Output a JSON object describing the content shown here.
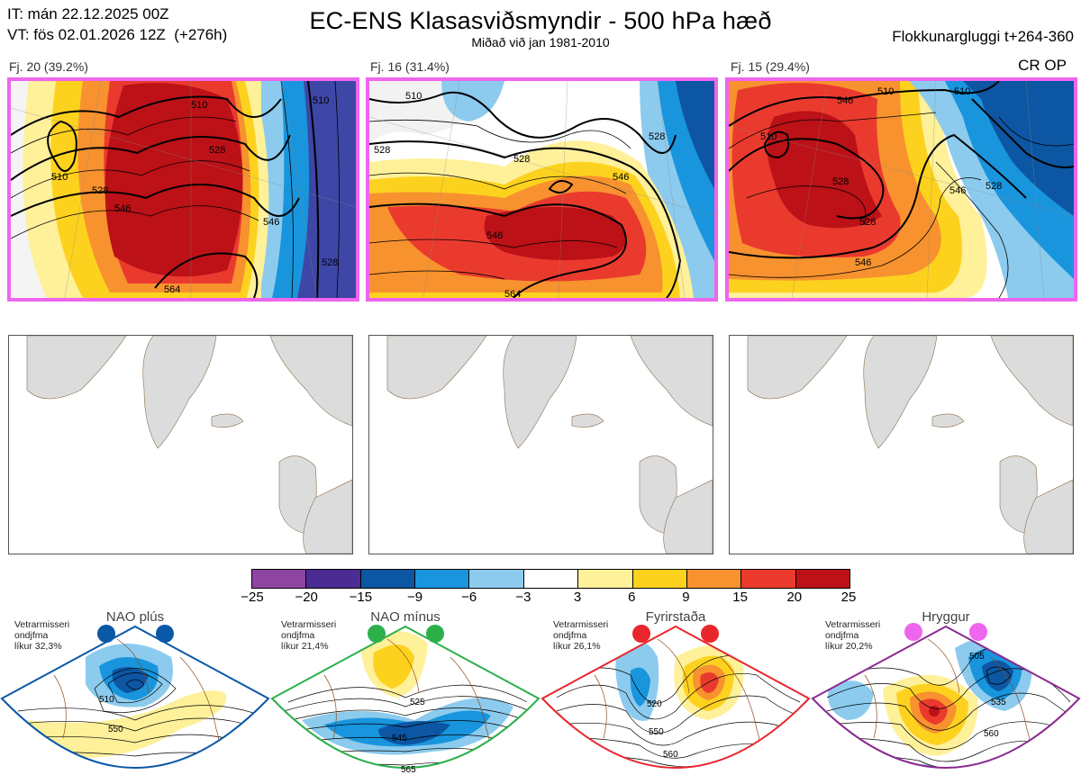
{
  "header": {
    "issue_time": "IT: mán 22.12.2025 00Z",
    "valid_time": "VT: fös 02.01.2026 12Z  (+276h)",
    "title": "EC-ENS Klasasviðsmyndir - 500 hPa hæð",
    "subtitle": "Miðað við jan 1981-2010",
    "window": "Flokkunargluggi t+264-360",
    "crop_label": "CR OP"
  },
  "clusters": [
    {
      "label": "Fj. 20 (39.2%)",
      "contour_labels": [
        "510",
        "510",
        "528",
        "528",
        "546",
        "546",
        "564",
        "528",
        "510"
      ]
    },
    {
      "label": "Fj. 16 (31.4%)",
      "contour_labels": [
        "510",
        "528",
        "528",
        "528",
        "546",
        "546",
        "564"
      ]
    },
    {
      "label": "Fj. 15 (29.4%)",
      "contour_labels": [
        "546",
        "510",
        "510",
        "528",
        "528",
        "546",
        "528",
        "546",
        "510"
      ]
    }
  ],
  "colorbar": {
    "ticks": [
      "−25",
      "−20",
      "−15",
      "−9",
      "−6",
      "−3",
      "3",
      "6",
      "9",
      "15",
      "20",
      "25"
    ],
    "colors": [
      "#8e45a2",
      "#4b2c93",
      "#0c56a3",
      "#1895dd",
      "#8ccbee",
      "#ffffff",
      "#fff09a",
      "#fdd21f",
      "#f7922f",
      "#ea3a2e",
      "#bb1117"
    ],
    "neg_strong": "#0c56a3",
    "pos_strong": "#bb1117"
  },
  "regimes": [
    {
      "name": "NAO plús",
      "meta": [
        "Vetrarmisseri",
        "ondjfma",
        "líkur 32,3%"
      ],
      "color": "#0a58a8",
      "labels": [
        "510",
        "550"
      ]
    },
    {
      "name": "NAO mínus",
      "meta": [
        "Vetrarmisseri",
        "ondjfma",
        "líkur 21,4%"
      ],
      "color": "#2bb04a",
      "labels": [
        "525",
        "545",
        "565"
      ]
    },
    {
      "name": "Fyrirstaða",
      "meta": [
        "Vetrarmisseri",
        "ondjfma",
        "líkur 26,1%"
      ],
      "color": "#e8262b",
      "labels": [
        "520",
        "550",
        "560"
      ]
    },
    {
      "name": "Hryggur",
      "meta": [
        "Vetrarmisseri",
        "ondjfma",
        "líkur 20,2%"
      ],
      "color": "#8a2a8f",
      "dot_color": "#ee66ee",
      "labels": [
        "505",
        "535",
        "560"
      ]
    }
  ]
}
